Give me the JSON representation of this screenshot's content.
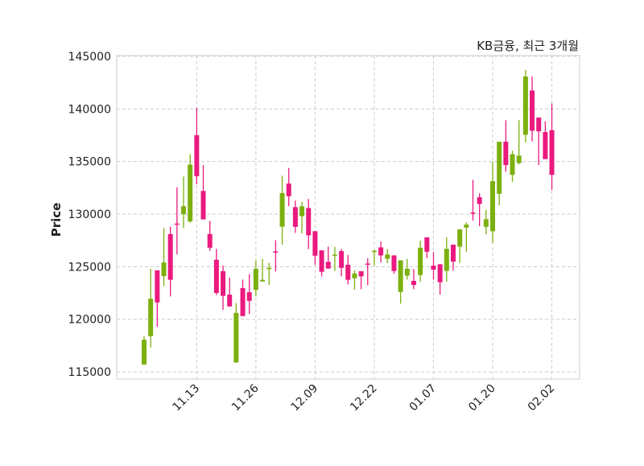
{
  "chart_data": {
    "type": "candlestick",
    "title": "KB금융, 최근 3개월",
    "xlabel": "",
    "ylabel": "Price",
    "ylim": [
      114300,
      145000
    ],
    "yticks": [
      115000,
      120000,
      125000,
      130000,
      135000,
      140000,
      145000
    ],
    "ytick_labels": [
      "115000",
      "120000",
      "125000",
      "130000",
      "135000",
      "140000",
      "145000"
    ],
    "xticks": [
      {
        "index": 8,
        "label": "11.13"
      },
      {
        "index": 17,
        "label": "11.26"
      },
      {
        "index": 26,
        "label": "12.09"
      },
      {
        "index": 35,
        "label": "12.22"
      },
      {
        "index": 44,
        "label": "01.07"
      },
      {
        "index": 53,
        "label": "01.20"
      },
      {
        "index": 62,
        "label": "02.02"
      }
    ],
    "grid": true,
    "colors": {
      "up": "#7cb00f",
      "down": "#ea1a7f",
      "grid": "#cccccc",
      "frame": "#dddddd"
    },
    "ohlc": [
      [
        115700,
        118370,
        115660,
        118050
      ],
      [
        118400,
        124800,
        117300,
        121950
      ],
      [
        124650,
        124650,
        119280,
        121600
      ],
      [
        124100,
        128670,
        123160,
        125400
      ],
      [
        128100,
        128800,
        122170,
        123750
      ],
      [
        129100,
        132540,
        126170,
        129000
      ],
      [
        130000,
        133570,
        128670,
        130750
      ],
      [
        129300,
        135690,
        129180,
        134700
      ],
      [
        137500,
        140090,
        132830,
        133600
      ],
      [
        132200,
        134660,
        129480,
        129500
      ],
      [
        128100,
        129360,
        126500,
        126800
      ],
      [
        125660,
        126700,
        122300,
        122500
      ],
      [
        124570,
        125100,
        120890,
        122220
      ],
      [
        122340,
        123950,
        121220,
        121220
      ],
      [
        115900,
        121530,
        115840,
        120600
      ],
      [
        122960,
        123770,
        120300,
        120300
      ],
      [
        122570,
        124280,
        120510,
        121750
      ],
      [
        122800,
        125610,
        122170,
        124800
      ],
      [
        123600,
        125740,
        123570,
        123750
      ],
      [
        124770,
        125360,
        123260,
        124900
      ],
      [
        126450,
        127520,
        124540,
        126400
      ],
      [
        128800,
        133650,
        127090,
        132000
      ],
      [
        132900,
        134380,
        130760,
        131700
      ],
      [
        130660,
        131280,
        128210,
        128790
      ],
      [
        129800,
        131160,
        128160,
        130750
      ],
      [
        130580,
        131430,
        126680,
        127980
      ],
      [
        128370,
        128370,
        125180,
        126040
      ],
      [
        126550,
        126550,
        124080,
        124510
      ],
      [
        125460,
        126910,
        124820,
        124820
      ],
      [
        126050,
        126880,
        124590,
        126150
      ],
      [
        126480,
        126680,
        124080,
        124890
      ],
      [
        125180,
        126120,
        123320,
        123750
      ],
      [
        123900,
        124640,
        122800,
        124350
      ],
      [
        124570,
        124570,
        122860,
        124080
      ],
      [
        125300,
        125810,
        123240,
        125200
      ],
      [
        126450,
        126630,
        125100,
        126500
      ],
      [
        126830,
        127400,
        125400,
        126070
      ],
      [
        125750,
        126680,
        125330,
        126150
      ],
      [
        126070,
        126070,
        124330,
        124590
      ],
      [
        122600,
        125610,
        121480,
        125600
      ],
      [
        124150,
        125740,
        123770,
        124800
      ],
      [
        123650,
        124770,
        122860,
        123260
      ],
      [
        124200,
        127470,
        123570,
        126800
      ],
      [
        127780,
        127800,
        125810,
        126420
      ],
      [
        125100,
        126380,
        123770,
        124720
      ],
      [
        125230,
        125230,
        122340,
        123520
      ],
      [
        124600,
        127780,
        123570,
        126700
      ],
      [
        127090,
        127090,
        124640,
        125480
      ],
      [
        126900,
        128550,
        125350,
        128550
      ],
      [
        128720,
        129230,
        126420,
        129000
      ],
      [
        130150,
        133260,
        129380,
        130100
      ],
      [
        131600,
        131970,
        128850,
        130970
      ],
      [
        128790,
        130400,
        128080,
        129510
      ],
      [
        128370,
        134990,
        127260,
        133130
      ],
      [
        131930,
        136880,
        130840,
        136880
      ],
      [
        136880,
        138930,
        134030,
        134660
      ],
      [
        133730,
        136030,
        133080,
        135690
      ],
      [
        134850,
        138930,
        134720,
        135560
      ],
      [
        137540,
        143710,
        136830,
        143080
      ],
      [
        141750,
        143080,
        136910,
        137930
      ],
      [
        139180,
        139180,
        134660,
        137870
      ],
      [
        137800,
        138830,
        135230,
        135230
      ],
      [
        137980,
        140520,
        132290,
        133730
      ]
    ]
  }
}
